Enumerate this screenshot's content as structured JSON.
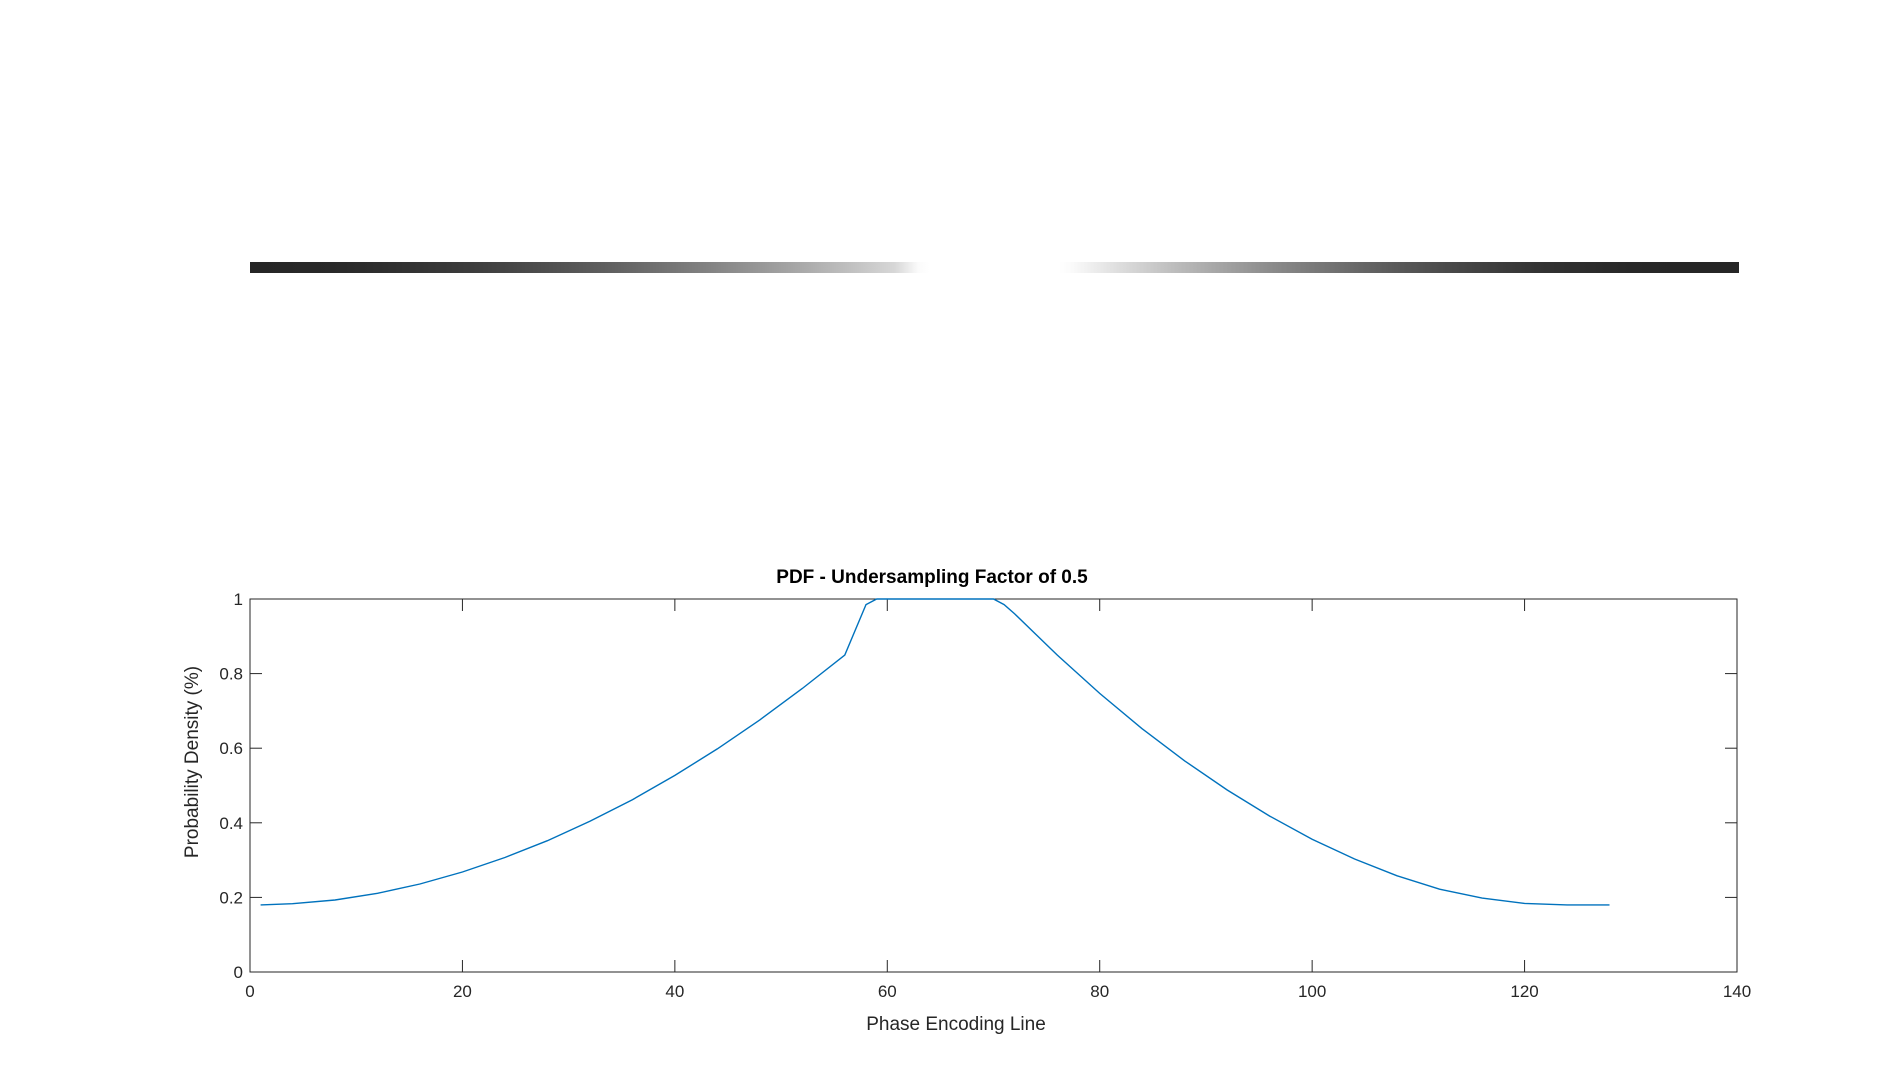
{
  "figure": {
    "background": "#ffffff",
    "axes_color": "#262626"
  },
  "colormap_strip": {
    "type": "heatmap",
    "colormap": "gray",
    "x_range": [
      1,
      128
    ],
    "note_values": "intensity equals 1 minus the sampling probability; white center where probability is 1"
  },
  "chart_data": {
    "type": "line",
    "title": "PDF - Undersampling Factor of 0.5",
    "xlabel": "Phase Encoding Line",
    "ylabel": "Probability Density (%)",
    "xlim": [
      0,
      140
    ],
    "ylim": [
      0,
      1
    ],
    "xticks": [
      "0",
      "20",
      "40",
      "60",
      "80",
      "100",
      "120",
      "140"
    ],
    "yticks": [
      "0",
      "0.2",
      "0.4",
      "0.6",
      "0.8",
      "1"
    ],
    "grid": false,
    "series": [
      {
        "color": "#0072BD",
        "x": [
          1,
          4,
          8,
          12,
          16,
          20,
          24,
          28,
          32,
          36,
          40,
          44,
          48,
          52,
          56,
          58,
          59,
          60,
          62,
          64,
          66,
          68,
          70,
          71,
          72,
          76,
          80,
          84,
          88,
          92,
          96,
          100,
          104,
          108,
          112,
          116,
          120,
          124,
          128
        ],
        "y": [
          0.18,
          0.183,
          0.193,
          0.211,
          0.236,
          0.268,
          0.307,
          0.352,
          0.404,
          0.462,
          0.527,
          0.598,
          0.676,
          0.76,
          0.85,
          0.985,
          1,
          1,
          1,
          1,
          1,
          1,
          1,
          0.985,
          0.96,
          0.85,
          0.747,
          0.652,
          0.566,
          0.488,
          0.418,
          0.356,
          0.303,
          0.258,
          0.222,
          0.198,
          0.184,
          0.18,
          0.18
        ]
      }
    ]
  }
}
